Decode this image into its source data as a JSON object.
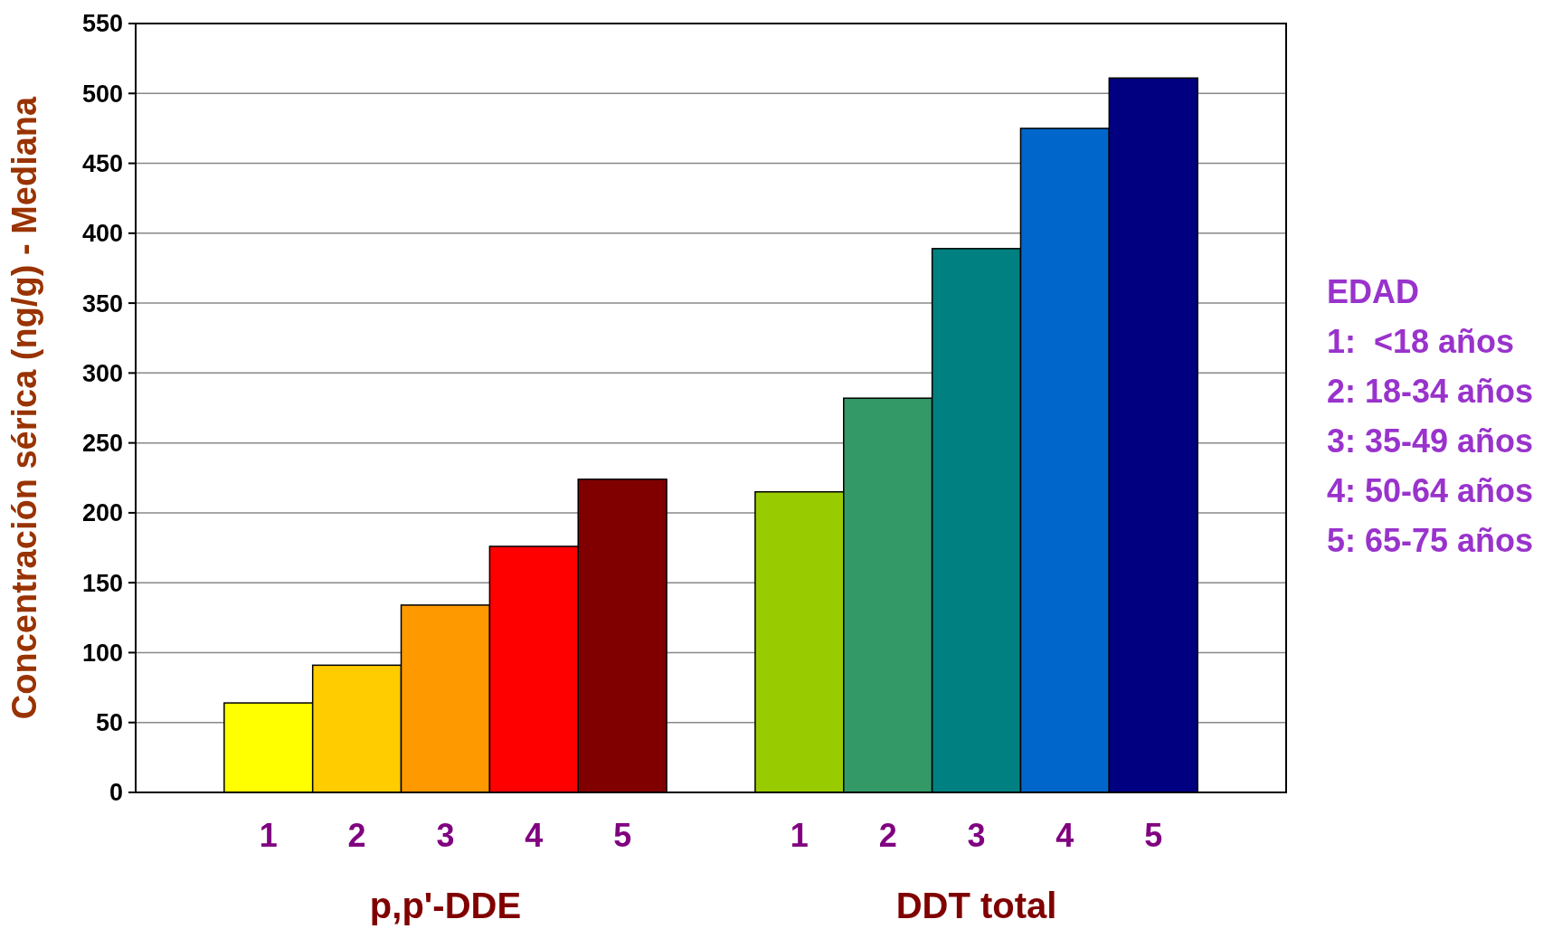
{
  "chart_data": {
    "type": "bar",
    "ylabel": "Concentración sérica (ng/g) - Mediana",
    "categories": [
      null,
      "1",
      "2",
      "3",
      "4",
      "5",
      null,
      "1",
      "2",
      "3",
      "4",
      "5",
      null
    ],
    "values": [
      null,
      64,
      91,
      134,
      176,
      224,
      null,
      215,
      282,
      389,
      475,
      511,
      null
    ],
    "colors": [
      null,
      "#ffff00",
      "#ffcc00",
      "#ff9900",
      "#ff0000",
      "#800000",
      null,
      "#99cc00",
      "#339966",
      "#008080",
      "#0066cc",
      "#000080",
      null
    ],
    "ylim": [
      0,
      550
    ],
    "yticks": [
      0,
      50,
      100,
      150,
      200,
      250,
      300,
      350,
      400,
      450,
      500,
      550
    ],
    "grid": "y",
    "annotations": [
      "p,p'-DDE",
      "DDT total",
      "EDAD",
      "1:  <18 años",
      "2: 18-34 años",
      "3: 35-49 años",
      "4: 50-64 años",
      "5: 65-75 años"
    ]
  }
}
